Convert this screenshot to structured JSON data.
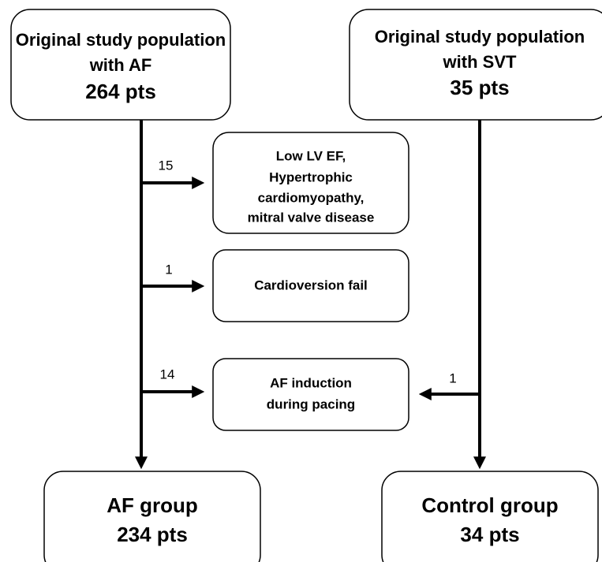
{
  "nodes": [
    {
      "lines": [
        "Original study population",
        "with AF",
        "264 pts"
      ]
    },
    {
      "lines": [
        "Original study population",
        "with SVT",
        "35 pts"
      ]
    },
    {
      "lines": [
        "Low LV EF,",
        "Hypertrophic",
        "cardiomyopathy,",
        "mitral valve disease"
      ]
    },
    {
      "lines": [
        "Cardioversion fail"
      ]
    },
    {
      "lines": [
        "AF induction",
        "during pacing"
      ]
    },
    {
      "lines": [
        "AF group",
        "234 pts"
      ]
    },
    {
      "lines": [
        "Control group",
        "34 pts"
      ]
    }
  ],
  "edges": [
    {
      "label": 15
    },
    {
      "label": 1
    },
    {
      "label": 14
    },
    {
      "label": 1
    }
  ]
}
